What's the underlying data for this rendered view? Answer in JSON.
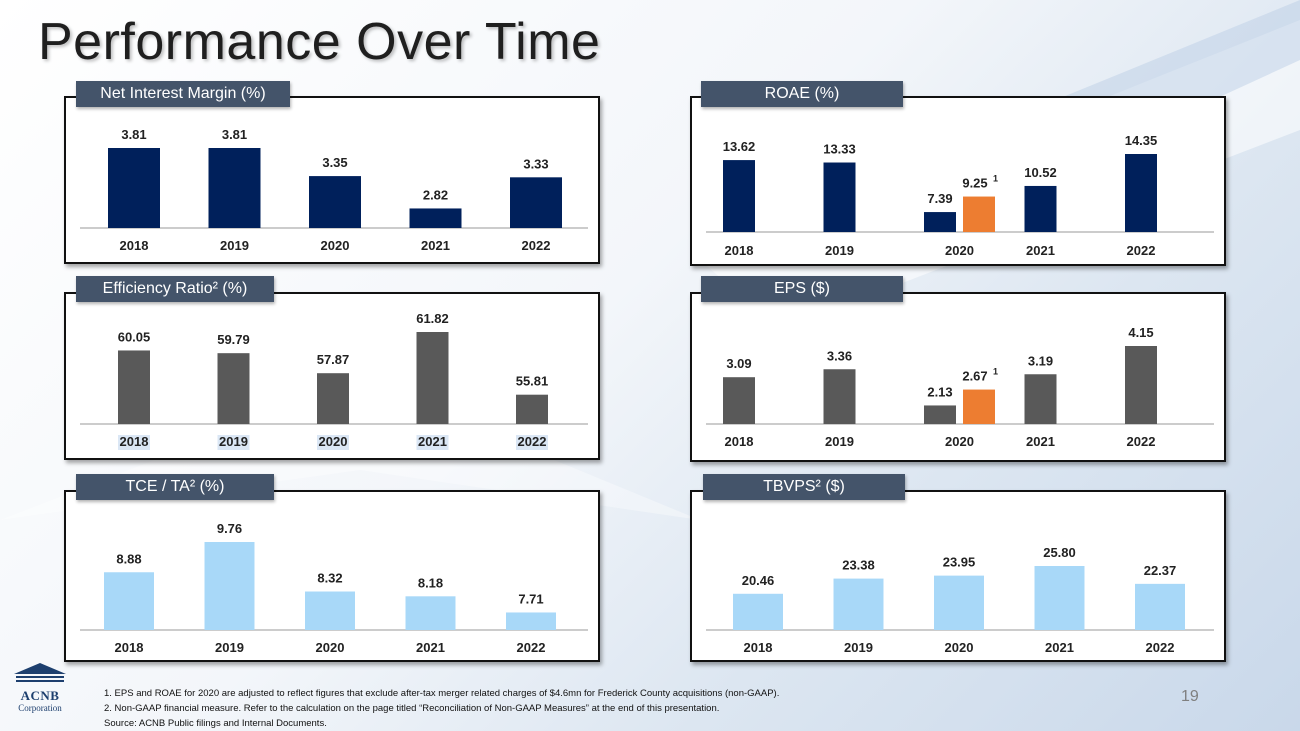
{
  "page": {
    "title": "Performance Over Time",
    "page_number": "19",
    "colors": {
      "navy": "#00205b",
      "gray": "#595959",
      "orange": "#ed7d31",
      "light_blue": "#a8d8f8",
      "label_bg": "#44546a"
    }
  },
  "logo": {
    "name": "ACNB",
    "sub": "Corporation"
  },
  "footnotes": [
    "1.  EPS and ROAE for 2020 are adjusted to reflect figures that exclude after-tax merger related charges of $4.6mn for Frederick County acquisitions (non-GAAP).",
    "2.  Non-GAAP financial measure. Refer to the calculation on the page titled “Reconciliation of Non-GAAP Measures” at the end of this presentation.",
    "Source:  ACNB Public filings and Internal Documents."
  ],
  "chart_data": [
    {
      "id": "nim",
      "type": "bar",
      "title": "Net Interest Margin (%)",
      "categories": [
        "2018",
        "2019",
        "2020",
        "2021",
        "2022"
      ],
      "values": [
        3.81,
        3.81,
        3.35,
        2.82,
        3.33
      ],
      "labels": [
        "3.81",
        "3.81",
        "3.35",
        "2.82",
        "3.33"
      ],
      "ylim": [
        2.5,
        3.81
      ],
      "color": "#00205b"
    },
    {
      "id": "roae",
      "type": "bar",
      "title": "ROAE (%)",
      "categories": [
        "2018",
        "2019",
        "2020",
        "2021",
        "2022"
      ],
      "values": [
        13.62,
        13.33,
        7.39,
        10.52,
        14.35
      ],
      "labels": [
        "13.62",
        "13.33",
        "7.39",
        "10.52",
        "14.35"
      ],
      "adjusted": {
        "category": "2020",
        "value": 9.25,
        "label": "9.25",
        "footnote": "1",
        "color": "#ed7d31"
      },
      "ylim": [
        5,
        14.35
      ],
      "color": "#00205b"
    },
    {
      "id": "eff",
      "type": "bar",
      "title": "Efficiency Ratio² (%)",
      "categories": [
        "2018",
        "2019",
        "2020",
        "2021",
        "2022"
      ],
      "values": [
        60.05,
        59.79,
        57.87,
        61.82,
        55.81
      ],
      "labels": [
        "60.05",
        "59.79",
        "57.87",
        "61.82",
        "55.81"
      ],
      "ylim": [
        53,
        61.82
      ],
      "color": "#595959",
      "highlight_categories": true
    },
    {
      "id": "eps",
      "type": "bar",
      "title": "EPS ($)",
      "categories": [
        "2018",
        "2019",
        "2020",
        "2021",
        "2022"
      ],
      "values": [
        3.09,
        3.36,
        2.13,
        3.19,
        4.15
      ],
      "labels": [
        "3.09",
        "3.36",
        "2.13",
        "3.19",
        "4.15"
      ],
      "adjusted": {
        "category": "2020",
        "value": 2.67,
        "label": "2.67",
        "footnote": "1",
        "color": "#ed7d31"
      },
      "ylim": [
        1.5,
        4.15
      ],
      "color": "#595959"
    },
    {
      "id": "tce",
      "type": "bar",
      "title": "TCE / TA² (%)",
      "categories": [
        "2018",
        "2019",
        "2020",
        "2021",
        "2022"
      ],
      "values": [
        8.88,
        9.76,
        8.32,
        8.18,
        7.71
      ],
      "labels": [
        "8.88",
        "9.76",
        "8.32",
        "8.18",
        "7.71"
      ],
      "ylim": [
        7.2,
        9.76
      ],
      "color": "#a8d8f8"
    },
    {
      "id": "tbvps",
      "type": "bar",
      "title": "TBVPS² ($)",
      "categories": [
        "2018",
        "2019",
        "2020",
        "2021",
        "2022"
      ],
      "values": [
        20.46,
        23.38,
        23.95,
        25.8,
        22.37
      ],
      "labels": [
        "20.46",
        "23.38",
        "23.95",
        "25.80",
        "22.37"
      ],
      "ylim": [
        13.5,
        25.8
      ],
      "color": "#a8d8f8"
    }
  ]
}
